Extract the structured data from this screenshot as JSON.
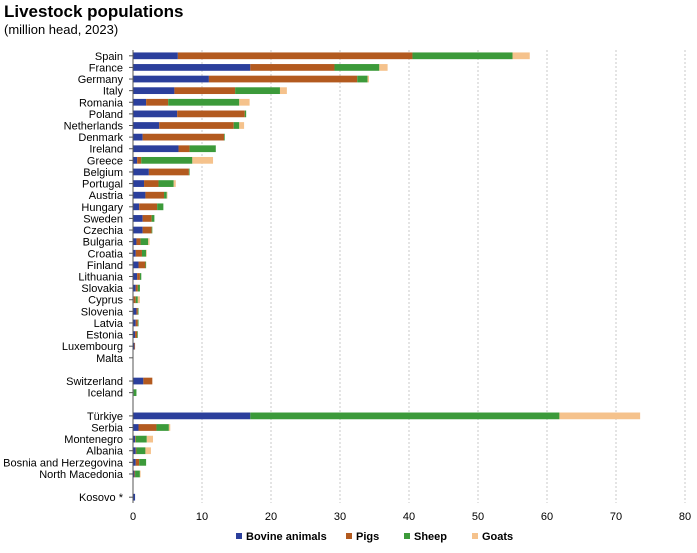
{
  "chart_data": {
    "type": "bar",
    "orientation": "horizontal",
    "stacked": true,
    "title": "Livestock populations",
    "subtitle": "(million head, 2023)",
    "xlim": [
      0,
      80
    ],
    "xticks": [
      0,
      10,
      20,
      30,
      40,
      50,
      60,
      70,
      80
    ],
    "grid": true,
    "legend_position": "bottom",
    "categories": [
      "Spain",
      "France",
      "Germany",
      "Italy",
      "Romania",
      "Poland",
      "Netherlands",
      "Denmark",
      "Ireland",
      "Greece",
      "Belgium",
      "Portugal",
      "Austria",
      "Hungary",
      "Sweden",
      "Czechia",
      "Bulgaria",
      "Croatia",
      "Finland",
      "Lithuania",
      "Slovakia",
      "Cyprus",
      "Slovenia",
      "Latvia",
      "Estonia",
      "Luxembourg",
      "Malta",
      "",
      "Switzerland",
      "Iceland",
      "",
      "Türkiye",
      "Serbia",
      "Montenegro",
      "Albania",
      "Bosnia and Herzegovina",
      "North Macedonia",
      "",
      "Kosovo *"
    ],
    "series": [
      {
        "name": "Bovine animals",
        "color": "#2b3f9c",
        "values": [
          6.5,
          17.0,
          11.0,
          6.0,
          1.9,
          6.4,
          3.8,
          1.4,
          6.6,
          0.6,
          2.3,
          1.6,
          1.8,
          0.9,
          1.4,
          1.4,
          0.5,
          0.4,
          0.8,
          0.6,
          0.4,
          0.1,
          0.5,
          0.4,
          0.3,
          0.2,
          0.0,
          null,
          1.5,
          0.1,
          null,
          17.0,
          0.8,
          0.3,
          0.4,
          0.4,
          0.2,
          null,
          0.3
        ]
      },
      {
        "name": "Pigs",
        "color": "#b35a1f",
        "values": [
          34.0,
          12.2,
          21.5,
          8.8,
          3.2,
          9.8,
          10.8,
          11.8,
          1.6,
          0.6,
          5.8,
          2.1,
          2.7,
          2.6,
          1.3,
          1.3,
          0.6,
          0.9,
          1.0,
          0.4,
          0.3,
          0.3,
          0.2,
          0.3,
          0.3,
          0.1,
          0.0,
          null,
          1.3,
          0.0,
          null,
          0.0,
          2.6,
          0.1,
          0.1,
          0.5,
          0.1,
          null,
          0.0
        ]
      },
      {
        "name": "Sheep",
        "color": "#3c9a3a",
        "values": [
          14.5,
          6.5,
          1.5,
          6.5,
          10.3,
          0.2,
          0.8,
          0.1,
          3.8,
          7.4,
          0.1,
          2.2,
          0.4,
          0.9,
          0.4,
          0.1,
          1.1,
          0.6,
          0.1,
          0.2,
          0.3,
          0.3,
          0.1,
          0.1,
          0.1,
          0.0,
          0.0,
          null,
          0.0,
          0.4,
          null,
          44.8,
          1.8,
          1.6,
          1.3,
          1.0,
          0.7,
          null,
          0.0
        ]
      },
      {
        "name": "Goats",
        "color": "#f5c28c",
        "values": [
          2.5,
          1.2,
          0.2,
          1.0,
          1.5,
          0.0,
          0.7,
          0.0,
          0.0,
          3.0,
          0.0,
          0.3,
          0.1,
          0.0,
          0.0,
          0.0,
          0.2,
          0.1,
          0.0,
          0.0,
          0.0,
          0.3,
          0.0,
          0.0,
          0.0,
          0.0,
          0.0,
          null,
          0.0,
          0.0,
          null,
          11.7,
          0.2,
          0.9,
          0.8,
          0.0,
          0.1,
          null,
          0.0
        ]
      }
    ]
  }
}
